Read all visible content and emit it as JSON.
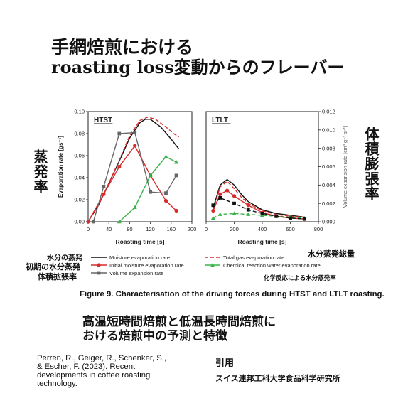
{
  "header": {
    "title_line1": "手網焙煎における",
    "title_line2": "roasting loss変動からのフレーバー"
  },
  "annotations": {
    "left_vertical": "蒸発率",
    "right_vertical": "体積膨張率",
    "mo": "水分の蒸発",
    "initial": "初期の水分蒸発",
    "volume": "体積拡張率",
    "total": "水分蒸発総量",
    "chemical": "化学反応による水分蒸発率"
  },
  "figure_caption": "Figure 9. Characterisation of the driving forces during HTST and LTLT roasting.",
  "subtitle": {
    "line1": "高温短時間焙煎と低温長時間焙煎に",
    "line2": "おける焙煎中の予測と特徴"
  },
  "reference": {
    "lines": [
      "Perren, R., Geiger, R., Schenker, S.,",
      "& Escher, F. (2023). Recent",
      "developments in coffee roasting",
      "technology."
    ]
  },
  "citation": {
    "label": "引用",
    "institution": "スイス連邦工科大学食品科学研究所"
  },
  "chart_data": [
    {
      "type": "line",
      "title": "HTST",
      "xlabel": "Roasting time [s]",
      "ylabel": "Evaporation rate [gs⁻¹]",
      "xlim": [
        0,
        200
      ],
      "ylim": [
        0,
        0.1
      ],
      "xticks": [
        "0",
        "40",
        "80",
        "120",
        "160",
        "200"
      ],
      "yticks": [
        "0.00",
        "0.02",
        "0.04",
        "0.06",
        "0.08",
        "0.10"
      ],
      "series": [
        {
          "name": "Moisture evaporation rate",
          "axis": "left",
          "color": "#111111",
          "style": "solid",
          "marker": "none",
          "x": [
            0,
            20,
            40,
            60,
            80,
            100,
            110,
            120,
            140,
            160,
            175
          ],
          "y": [
            0.0,
            0.015,
            0.035,
            0.055,
            0.076,
            0.09,
            0.093,
            0.093,
            0.086,
            0.075,
            0.066
          ]
        },
        {
          "name": "Total gas evaporation rate",
          "axis": "left",
          "color": "#d62b2b",
          "style": "dashed",
          "marker": "none",
          "x": [
            0,
            20,
            40,
            60,
            80,
            100,
            115,
            130,
            150,
            165,
            175
          ],
          "y": [
            0.0,
            0.015,
            0.035,
            0.056,
            0.078,
            0.092,
            0.095,
            0.093,
            0.086,
            0.08,
            0.077
          ]
        },
        {
          "name": "Initial moisture evaporation rate",
          "axis": "left",
          "color": "#d62b2b",
          "style": "solid",
          "marker": "circle",
          "x": [
            0,
            30,
            60,
            90,
            120,
            150,
            170
          ],
          "y": [
            0.0,
            0.025,
            0.05,
            0.069,
            0.042,
            0.019,
            0.01
          ]
        },
        {
          "name": "Chemical reaction water evaporation rate",
          "axis": "left",
          "color": "#3cb34a",
          "style": "solid",
          "marker": "triangle",
          "x": [
            60,
            90,
            120,
            150,
            170
          ],
          "y": [
            0.0,
            0.013,
            0.042,
            0.059,
            0.054
          ]
        },
        {
          "name": "Volume expansion rate",
          "axis": "left",
          "color": "#666666",
          "style": "solid",
          "marker": "square",
          "x": [
            10,
            30,
            60,
            90,
            120,
            150,
            170
          ],
          "y": [
            0.0,
            0.032,
            0.08,
            0.081,
            0.027,
            0.026,
            0.042
          ]
        }
      ]
    },
    {
      "type": "line",
      "title": "LTLT",
      "xlabel": "Roasting time [s]",
      "ylabel": "Volume expansion rate [cm³ g⁻¹ s⁻¹]",
      "xlim": [
        0,
        800
      ],
      "ylim": [
        0,
        0.012
      ],
      "xticks": [
        "0",
        "200",
        "400",
        "600",
        "800"
      ],
      "yticks": [
        "0.000",
        "0.002",
        "0.004",
        "0.006",
        "0.008",
        "0.010",
        "0.012"
      ],
      "series": [
        {
          "name": "Moisture evaporation rate",
          "color": "#111111",
          "style": "solid",
          "marker": "none",
          "x": [
            50,
            100,
            150,
            200,
            250,
            300,
            400,
            500,
            600,
            700
          ],
          "y": [
            0.0015,
            0.004,
            0.0046,
            0.004,
            0.003,
            0.0022,
            0.0013,
            0.0009,
            0.0007,
            0.0005
          ]
        },
        {
          "name": "Total gas evaporation rate",
          "color": "#d62b2b",
          "style": "dashed",
          "marker": "none",
          "x": [
            50,
            100,
            150,
            200,
            250,
            300,
            400,
            500,
            600,
            700
          ],
          "y": [
            0.0013,
            0.0038,
            0.0044,
            0.0036,
            0.0027,
            0.002,
            0.0012,
            0.0008,
            0.0006,
            0.0005
          ]
        },
        {
          "name": "Initial moisture evaporation rate",
          "color": "#d62b2b",
          "style": "solid",
          "marker": "circle",
          "x": [
            50,
            100,
            150,
            200,
            300,
            400,
            500,
            600,
            700
          ],
          "y": [
            0.0012,
            0.003,
            0.0034,
            0.0028,
            0.0018,
            0.001,
            0.0006,
            0.0004,
            0.0003
          ]
        },
        {
          "name": "Chemical reaction water evaporation rate",
          "color": "#3cb34a",
          "style": "dashed",
          "marker": "triangle",
          "x": [
            50,
            100,
            200,
            300,
            400,
            500,
            600,
            700
          ],
          "y": [
            0.0004,
            0.0008,
            0.0009,
            0.0008,
            0.0007,
            0.0006,
            0.0005,
            0.0004
          ]
        },
        {
          "name": "Volume expansion rate",
          "color": "#111111",
          "style": "dashed",
          "marker": "square",
          "x": [
            50,
            100,
            200,
            300,
            400,
            500,
            600,
            700
          ],
          "y": [
            0.0018,
            0.0026,
            0.002,
            0.0013,
            0.0009,
            0.0006,
            0.0004,
            0.0003
          ]
        }
      ]
    }
  ],
  "legend": {
    "items": [
      {
        "label": "Moisture evaporation rate",
        "color": "#111111",
        "style": "solid",
        "marker": "none"
      },
      {
        "label": "Total gas evaporation rate",
        "color": "#d62b2b",
        "style": "dashed",
        "marker": "none"
      },
      {
        "label": "Initial moisture evaporation rate",
        "color": "#d62b2b",
        "style": "solid",
        "marker": "circle"
      },
      {
        "label": "Chemical reaction water evaporation rate",
        "color": "#3cb34a",
        "style": "solid",
        "marker": "triangle"
      },
      {
        "label": "Volume expansion rate",
        "color": "#666666",
        "style": "solid",
        "marker": "square"
      }
    ]
  }
}
